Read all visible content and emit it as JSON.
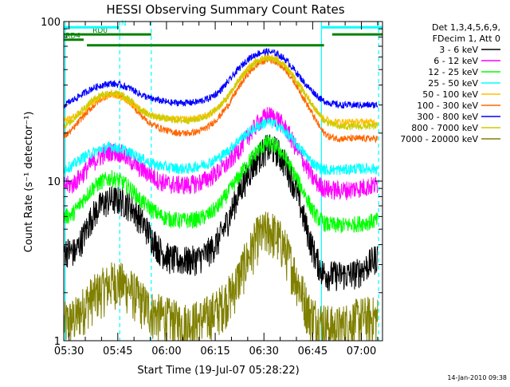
{
  "chart_data": {
    "type": "line",
    "title": "HESSI Observing Summary Count Rates",
    "xlabel": "Start Time (19-Jul-07 05:28:22)",
    "ylabel": "Count Rate (s⁻¹ detector⁻¹)",
    "x_tick_labels": [
      "05:30",
      "05:45",
      "06:00",
      "06:15",
      "06:30",
      "06:45",
      "07:00"
    ],
    "x_tick_minutes": [
      30,
      45,
      60,
      75,
      90,
      105,
      120
    ],
    "xlim_minutes": [
      28.37,
      126.5
    ],
    "ylim": [
      1,
      100
    ],
    "yscale": "log",
    "y_tick_labels": [
      "1",
      "10",
      "100"
    ],
    "x_unit": "minutes after 05:00 UT",
    "legend": {
      "header": [
        "Det 1,3,4,5,6,9,",
        "FDecim 1, Att 0"
      ],
      "placement": "right"
    },
    "series": [
      {
        "name": "3 - 6 keV",
        "color": "#000000",
        "x": [
          28.5,
          32,
          34.5,
          37,
          40,
          43,
          46,
          49,
          52,
          55,
          58,
          61,
          64,
          67,
          70,
          72,
          74,
          76,
          78,
          80,
          82,
          85,
          88,
          91,
          94,
          97,
          100,
          102,
          104,
          106,
          108,
          110,
          113,
          116,
          119,
          122,
          125
        ],
        "y": [
          3.7,
          3.6,
          4.6,
          6.0,
          7.2,
          7.7,
          7.6,
          7.0,
          5.8,
          4.6,
          3.7,
          3.3,
          3.2,
          3.2,
          3.3,
          3.5,
          3.8,
          4.3,
          5.2,
          6.5,
          8.3,
          11.0,
          14.0,
          16.3,
          15.6,
          12.5,
          8.8,
          6.2,
          4.4,
          3.3,
          2.7,
          2.6,
          2.6,
          2.6,
          2.7,
          3.0,
          3.4
        ]
      },
      {
        "name": "6 - 12 keV",
        "color": "#ff00ff",
        "x": [
          28.5,
          31,
          34,
          37,
          40,
          43,
          46,
          49,
          52,
          55,
          58,
          61,
          64,
          67,
          70,
          73,
          76,
          79,
          82,
          85,
          88,
          91,
          94,
          97,
          100,
          103,
          105,
          107,
          109,
          112,
          115,
          118,
          121,
          125
        ],
        "y": [
          9.5,
          9.5,
          11.0,
          13.0,
          14.5,
          15.5,
          15.0,
          13.5,
          12.0,
          11.0,
          10.0,
          9.6,
          9.5,
          9.5,
          9.8,
          10.5,
          11.5,
          13.0,
          15.5,
          19.0,
          23.0,
          26.0,
          25.0,
          21.0,
          16.0,
          12.5,
          10.5,
          9.5,
          9.0,
          8.8,
          8.8,
          9.0,
          9.2,
          9.5
        ]
      },
      {
        "name": "12 - 25 keV",
        "color": "#00ff00",
        "x": [
          28.5,
          31,
          34,
          37,
          40,
          43,
          46,
          49,
          52,
          55,
          58,
          61,
          64,
          67,
          70,
          73,
          76,
          79,
          82,
          85,
          88,
          91,
          94,
          97,
          100,
          103,
          105,
          107,
          109,
          112,
          115,
          118,
          121,
          125
        ],
        "y": [
          6.0,
          6.2,
          7.5,
          9.0,
          10.0,
          10.5,
          10.0,
          9.0,
          7.6,
          6.8,
          6.1,
          5.8,
          5.7,
          5.7,
          5.8,
          6.2,
          7.0,
          8.5,
          10.5,
          13.0,
          15.5,
          17.5,
          16.5,
          13.5,
          10.5,
          8.0,
          6.5,
          5.8,
          5.4,
          5.3,
          5.3,
          5.4,
          5.5,
          5.7
        ]
      },
      {
        "name": "25 - 50 keV",
        "color": "#00ffff",
        "x": [
          28.5,
          31,
          34,
          37,
          40,
          43,
          46,
          49,
          52,
          55,
          58,
          61,
          64,
          67,
          70,
          73,
          76,
          79,
          82,
          85,
          88,
          91,
          94,
          97,
          100,
          103,
          105,
          107,
          109,
          112,
          115,
          118,
          121,
          125
        ],
        "y": [
          12.0,
          12.5,
          14.0,
          15.0,
          16.0,
          16.5,
          16.0,
          15.0,
          14.0,
          13.0,
          12.5,
          12.2,
          12.0,
          12.0,
          12.5,
          13.0,
          14.0,
          15.5,
          18.0,
          20.0,
          22.0,
          23.5,
          22.5,
          20.0,
          17.0,
          14.5,
          13.0,
          12.2,
          11.8,
          11.8,
          11.8,
          12.0,
          12.0,
          12.0
        ]
      },
      {
        "name": "50 - 100 keV",
        "color": "#ffbf00",
        "x": [
          28.5,
          31,
          34,
          37,
          40,
          43,
          46,
          49,
          52,
          55,
          58,
          61,
          64,
          67,
          70,
          73,
          76,
          79,
          82,
          85,
          88,
          91,
          94,
          97,
          100,
          103,
          106,
          108,
          110,
          113,
          116,
          119,
          122,
          125
        ],
        "y": [
          24,
          25,
          27,
          31,
          34,
          35,
          34,
          31,
          28,
          26,
          25,
          24.5,
          24.5,
          24.5,
          25,
          26,
          29,
          34,
          42,
          51,
          57,
          60,
          58,
          52,
          43,
          35,
          28,
          25,
          24,
          23.5,
          23.5,
          23.5,
          23.5,
          23.5
        ]
      },
      {
        "name": "100 - 300 keV",
        "color": "#ff6600",
        "x": [
          28.5,
          31,
          34,
          37,
          40,
          43,
          46,
          49,
          52,
          55,
          58,
          61,
          64,
          67,
          70,
          73,
          76,
          79,
          82,
          85,
          88,
          91,
          94,
          97,
          100,
          103,
          106,
          108,
          110,
          113,
          116,
          119,
          122,
          125
        ],
        "y": [
          19,
          21,
          25,
          29,
          33,
          35,
          34,
          31,
          26,
          23,
          21.5,
          20.5,
          20,
          20,
          20.5,
          22,
          25,
          30,
          38,
          47,
          54,
          58,
          56,
          49,
          40,
          31,
          24,
          20.5,
          19,
          18.5,
          18.5,
          18.5,
          18.5,
          18.5
        ]
      },
      {
        "name": "300 - 800 keV",
        "color": "#0000ff",
        "x": [
          28.5,
          31,
          34,
          37,
          40,
          43,
          46,
          49,
          52,
          55,
          58,
          61,
          64,
          67,
          70,
          73,
          76,
          79,
          82,
          85,
          88,
          91,
          94,
          97,
          100,
          103,
          106,
          108,
          110,
          113,
          116,
          119,
          122,
          125
        ],
        "y": [
          30,
          32,
          35,
          38,
          40,
          41,
          40,
          38,
          35,
          33,
          32,
          31,
          31,
          31,
          31.5,
          33,
          36,
          42,
          50,
          58,
          63,
          65,
          63,
          57,
          48,
          40,
          35,
          32,
          31,
          30,
          30,
          30,
          30,
          30
        ]
      },
      {
        "name": "800 - 7000 keV",
        "color": "#cccc00",
        "x": [
          28.5,
          31,
          34,
          37,
          40,
          43,
          46,
          49,
          52,
          55,
          58,
          61,
          64,
          67,
          70,
          73,
          76,
          79,
          82,
          85,
          88,
          91,
          94,
          97,
          100,
          103,
          106,
          108,
          110,
          113,
          116,
          119,
          122,
          125
        ],
        "y": [
          22,
          24,
          28,
          32,
          35,
          36,
          35,
          32,
          28,
          26,
          25,
          24.5,
          24,
          24,
          24.5,
          26,
          29,
          34,
          42,
          50,
          56,
          59,
          57,
          51,
          42,
          34,
          28,
          24.5,
          23,
          22,
          22,
          22,
          22,
          22
        ]
      },
      {
        "name": "7000 - 20000 keV",
        "color": "#808000",
        "x": [
          28.5,
          32,
          36,
          40,
          44,
          48,
          52,
          56,
          60,
          64,
          68,
          72,
          76,
          80,
          84,
          88,
          92,
          96,
          100,
          104,
          108,
          112,
          116,
          120,
          125
        ],
        "y": [
          1.3,
          1.4,
          1.8,
          2.1,
          2.4,
          2.2,
          1.8,
          1.5,
          1.4,
          1.3,
          1.3,
          1.4,
          1.6,
          2.0,
          3.0,
          4.5,
          5.0,
          4.0,
          2.5,
          1.5,
          1.3,
          1.2,
          1.3,
          1.4,
          1.4
        ]
      }
    ],
    "annotations": [
      {
        "label": "RD0",
        "color": "#008000",
        "x_start": 28.4,
        "x_end": 55.3,
        "y": 83
      },
      {
        "label": "RD4",
        "color": "#008000",
        "x_start": 28.4,
        "x_end": 34.5,
        "y": 77
      },
      {
        "label": "N",
        "color": "#00ffff",
        "x_start": 28.4,
        "x_end": 45.5,
        "y": 92
      }
    ],
    "level_segments": [
      {
        "color": "#008000",
        "x_start": 35.5,
        "x_end": 55.3,
        "y": 71
      },
      {
        "color": "#008000",
        "x_start": 55.3,
        "x_end": 83.2,
        "y": 71
      },
      {
        "color": "#008000",
        "x_start": 83.2,
        "x_end": 108.5,
        "y": 71
      },
      {
        "color": "#008000",
        "x_start": 111.0,
        "x_end": 126.4,
        "y": 83
      },
      {
        "color": "#00ffff",
        "x_start": 107.7,
        "x_end": 126.4,
        "y": 92
      }
    ],
    "vertical_markers": [
      {
        "color": "#00ffff",
        "style": "solid",
        "x": 28.8
      },
      {
        "color": "#00ffff",
        "style": "dashed",
        "x": 45.6
      },
      {
        "color": "#00ffff",
        "style": "dashed",
        "x": 55.3
      },
      {
        "color": "#00ffff",
        "style": "solid",
        "x": 107.7
      },
      {
        "color": "#00ffff",
        "style": "dashed",
        "x": 125.3
      }
    ],
    "footer_date": "14-Jan-2010 09:38"
  }
}
